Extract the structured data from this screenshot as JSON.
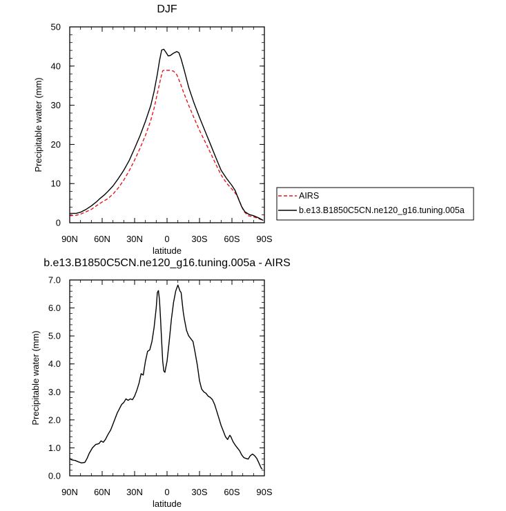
{
  "chart_data": [
    {
      "type": "line",
      "title": "DJF",
      "xlabel": "latitude",
      "ylabel": "Precipitable water (mm)",
      "xlim": [
        -90,
        90
      ],
      "ylim": [
        0,
        50
      ],
      "x_tick_labels": [
        "90N",
        "60N",
        "30N",
        "0",
        "30S",
        "60S",
        "90S"
      ],
      "y_tick_labels": [
        "0",
        "10",
        "20",
        "30",
        "40",
        "50"
      ],
      "legend_position": "right",
      "series": [
        {
          "name": "AIRS",
          "color": "#e8161c",
          "dash": "dashed",
          "points": [
            [
              -90,
              1.8
            ],
            [
              -84,
              1.9
            ],
            [
              -80,
              2.2
            ],
            [
              -75,
              2.8
            ],
            [
              -70,
              3.4
            ],
            [
              -65,
              4.4
            ],
            [
              -60,
              5.3
            ],
            [
              -55,
              6.1
            ],
            [
              -50,
              7.3
            ],
            [
              -45,
              8.9
            ],
            [
              -40,
              10.9
            ],
            [
              -35,
              13.3
            ],
            [
              -30,
              16.0
            ],
            [
              -25,
              19.0
            ],
            [
              -20,
              22.3
            ],
            [
              -15,
              26.2
            ],
            [
              -12,
              29.2
            ],
            [
              -9,
              33.0
            ],
            [
              -6,
              36.7
            ],
            [
              -4,
              38.8
            ],
            [
              -2,
              39.0
            ],
            [
              0,
              38.9
            ],
            [
              3,
              38.9
            ],
            [
              6,
              38.7
            ],
            [
              9,
              37.8
            ],
            [
              12,
              35.8
            ],
            [
              15,
              33.5
            ],
            [
              20,
              30.0
            ],
            [
              25,
              26.7
            ],
            [
              30,
              23.6
            ],
            [
              35,
              20.8
            ],
            [
              40,
              17.9
            ],
            [
              45,
              15.0
            ],
            [
              50,
              12.2
            ],
            [
              55,
              10.1
            ],
            [
              60,
              8.6
            ],
            [
              65,
              6.9
            ],
            [
              68,
              4.8
            ],
            [
              71,
              2.9
            ],
            [
              75,
              1.8
            ],
            [
              80,
              1.5
            ],
            [
              85,
              1.0
            ],
            [
              88,
              0.7
            ]
          ]
        },
        {
          "name": "b.e13.B1850C5CN.ne120_g16.tuning.005a",
          "color": "#000000",
          "dash": "solid",
          "points": [
            [
              -90,
              2.4
            ],
            [
              -84,
              2.4
            ],
            [
              -80,
              2.7
            ],
            [
              -75,
              3.4
            ],
            [
              -70,
              4.3
            ],
            [
              -65,
              5.4
            ],
            [
              -62,
              6.2
            ],
            [
              -58,
              7.1
            ],
            [
              -55,
              7.9
            ],
            [
              -50,
              9.4
            ],
            [
              -45,
              11.3
            ],
            [
              -40,
              13.4
            ],
            [
              -35,
              15.9
            ],
            [
              -30,
              19.0
            ],
            [
              -25,
              22.2
            ],
            [
              -20,
              25.9
            ],
            [
              -15,
              30.0
            ],
            [
              -12,
              33.5
            ],
            [
              -9,
              37.9
            ],
            [
              -7,
              41.3
            ],
            [
              -5,
              44.1
            ],
            [
              -3,
              44.3
            ],
            [
              -1,
              43.5
            ],
            [
              1,
              42.6
            ],
            [
              3,
              42.7
            ],
            [
              6,
              43.3
            ],
            [
              9,
              43.7
            ],
            [
              11,
              43.4
            ],
            [
              13,
              41.8
            ],
            [
              16,
              38.8
            ],
            [
              20,
              34.6
            ],
            [
              25,
              30.5
            ],
            [
              30,
              26.9
            ],
            [
              35,
              23.5
            ],
            [
              40,
              20.1
            ],
            [
              45,
              16.7
            ],
            [
              50,
              13.4
            ],
            [
              55,
              11.3
            ],
            [
              60,
              9.5
            ],
            [
              63,
              8.2
            ],
            [
              66,
              6.1
            ],
            [
              69,
              4.1
            ],
            [
              72,
              2.8
            ],
            [
              76,
              2.1
            ],
            [
              80,
              1.8
            ],
            [
              85,
              1.2
            ],
            [
              89,
              0.6
            ]
          ]
        }
      ]
    },
    {
      "type": "line",
      "title": "b.e13.B1850C5CN.ne120_g16.tuning.005a - AIRS",
      "xlabel": "latitude",
      "ylabel": "Precipitable water (mm)",
      "xlim": [
        -90,
        90
      ],
      "ylim": [
        0,
        7
      ],
      "x_tick_labels": [
        "90N",
        "60N",
        "30N",
        "0",
        "30S",
        "60S",
        "90S"
      ],
      "y_tick_labels": [
        "0.0",
        "1.0",
        "2.0",
        "3.0",
        "4.0",
        "5.0",
        "6.0",
        "7.0"
      ],
      "series": [
        {
          "color": "#000000",
          "dash": "solid",
          "points": [
            [
              -90,
              0.62
            ],
            [
              -88,
              0.57
            ],
            [
              -85,
              0.55
            ],
            [
              -82,
              0.5
            ],
            [
              -79,
              0.46
            ],
            [
              -76,
              0.48
            ],
            [
              -74,
              0.62
            ],
            [
              -72,
              0.8
            ],
            [
              -69,
              1.0
            ],
            [
              -66,
              1.12
            ],
            [
              -63,
              1.15
            ],
            [
              -61,
              1.25
            ],
            [
              -59,
              1.2
            ],
            [
              -57,
              1.3
            ],
            [
              -55,
              1.45
            ],
            [
              -52,
              1.65
            ],
            [
              -50,
              1.85
            ],
            [
              -48,
              2.05
            ],
            [
              -46,
              2.25
            ],
            [
              -44,
              2.4
            ],
            [
              -42,
              2.55
            ],
            [
              -40,
              2.62
            ],
            [
              -38,
              2.75
            ],
            [
              -36,
              2.7
            ],
            [
              -34,
              2.75
            ],
            [
              -32,
              2.72
            ],
            [
              -30,
              2.85
            ],
            [
              -28,
              3.05
            ],
            [
              -26,
              3.3
            ],
            [
              -24,
              3.65
            ],
            [
              -22,
              3.6
            ],
            [
              -20,
              4.1
            ],
            [
              -18,
              4.45
            ],
            [
              -16,
              4.5
            ],
            [
              -14,
              4.8
            ],
            [
              -12,
              5.3
            ],
            [
              -10,
              6.0
            ],
            [
              -9,
              6.55
            ],
            [
              -8,
              6.62
            ],
            [
              -7,
              6.3
            ],
            [
              -6,
              5.6
            ],
            [
              -5,
              4.8
            ],
            [
              -4,
              4.1
            ],
            [
              -3,
              3.75
            ],
            [
              -2,
              3.7
            ],
            [
              -1,
              3.9
            ],
            [
              0,
              4.1
            ],
            [
              2,
              4.8
            ],
            [
              4,
              5.6
            ],
            [
              6,
              6.2
            ],
            [
              8,
              6.6
            ],
            [
              10,
              6.82
            ],
            [
              12,
              6.6
            ],
            [
              13,
              6.55
            ],
            [
              14,
              6.2
            ],
            [
              15,
              5.85
            ],
            [
              16,
              5.6
            ],
            [
              18,
              5.2
            ],
            [
              20,
              5.0
            ],
            [
              22,
              4.9
            ],
            [
              24,
              4.8
            ],
            [
              26,
              4.4
            ],
            [
              28,
              3.95
            ],
            [
              30,
              3.4
            ],
            [
              32,
              3.1
            ],
            [
              34,
              3.0
            ],
            [
              36,
              2.95
            ],
            [
              38,
              2.85
            ],
            [
              40,
              2.8
            ],
            [
              42,
              2.72
            ],
            [
              44,
              2.55
            ],
            [
              46,
              2.3
            ],
            [
              48,
              2.05
            ],
            [
              50,
              1.8
            ],
            [
              52,
              1.6
            ],
            [
              54,
              1.4
            ],
            [
              56,
              1.3
            ],
            [
              58,
              1.45
            ],
            [
              59,
              1.4
            ],
            [
              61,
              1.22
            ],
            [
              63,
              1.1
            ],
            [
              65,
              1.0
            ],
            [
              67,
              0.9
            ],
            [
              69,
              0.75
            ],
            [
              71,
              0.65
            ],
            [
              73,
              0.62
            ],
            [
              75,
              0.6
            ],
            [
              77,
              0.72
            ],
            [
              79,
              0.78
            ],
            [
              81,
              0.72
            ],
            [
              83,
              0.62
            ],
            [
              85,
              0.45
            ],
            [
              87,
              0.28
            ],
            [
              88,
              0.24
            ]
          ]
        }
      ]
    }
  ]
}
